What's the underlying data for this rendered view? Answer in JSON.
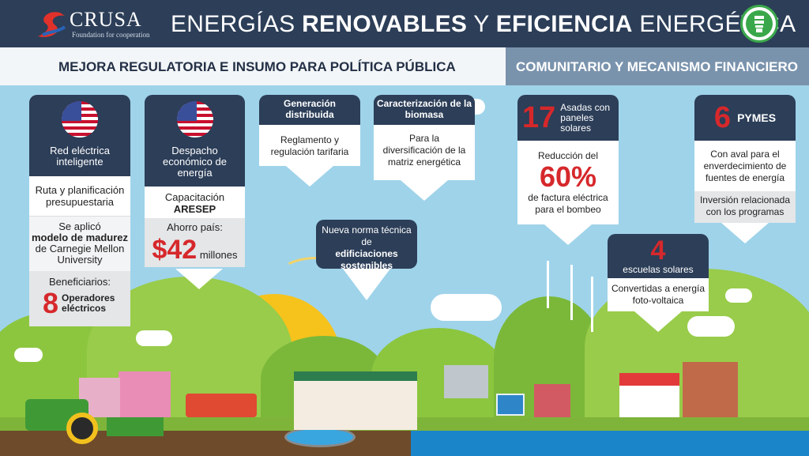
{
  "header": {
    "logo_word": "CRUSA",
    "logo_tag": "Foundation for cooperation",
    "title_part1": "ENERGÍAS ",
    "title_bold1": "RENOVABLES",
    "title_part2": " Y ",
    "title_bold2": "EFICIENCIA",
    "title_part3": " ENERGÉTICA",
    "badge_icon": "lightbulb-icon"
  },
  "sections": {
    "left": "MEJORA REGULATORIA E INSUMO PARA POLÍTICA PÚBLICA",
    "right": "COMUNITARIO Y MECANISMO FINANCIERO"
  },
  "cards": {
    "red_electrica": {
      "title": "Red eléctrica inteligente",
      "body1": "Ruta y planificación presupuestaria",
      "body2_pre": "Se aplicó",
      "body2_bold": "modelo de madurez",
      "body2_post": "de Carnegie Mellon University",
      "benef_label": "Beneficiarios:",
      "benef_num": "8",
      "benef_text": "Operadores eléctricos"
    },
    "despacho": {
      "title": "Despacho económico de energía",
      "body1": "Capacitación",
      "body1_bold": "ARESEP",
      "ahorro_label": "Ahorro país:",
      "ahorro_value": "$42",
      "ahorro_unit": "millones"
    },
    "generacion": {
      "title": "Generación distribuida",
      "body": "Reglamento y regulación tarifaria"
    },
    "biomasa": {
      "title": "Caracterización de la biomasa",
      "body": "Para la diversificación de la matriz energética"
    },
    "norma": {
      "pre": "Nueva norma técnica de",
      "bold": "edificiaciones sostenibles"
    },
    "asadas": {
      "num": "17",
      "title": "Asadas con paneles solares",
      "body1": "Reducción del",
      "pct": "60%",
      "body2": "de factura eléctrica para el bombeo"
    },
    "pymes": {
      "num": "6",
      "title": "PYMES",
      "body": "Con aval para el enverdecimiento de fuentes de energía",
      "gray": "Inversión relacionada con los programas"
    },
    "escuelas": {
      "num": "4",
      "title": "escuelas solares",
      "body": "Convertidas a energía foto-voltaica"
    }
  },
  "colors": {
    "navy": "#2c3e58",
    "steel": "#7a93ad",
    "red": "#d6282b",
    "green": "#8cc63f",
    "sky": "#9fd3ea"
  }
}
